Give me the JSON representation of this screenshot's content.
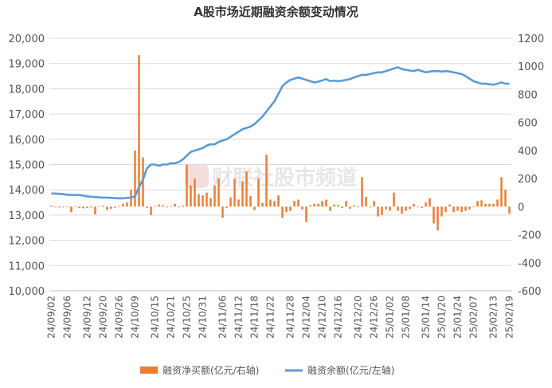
{
  "chart_data": {
    "type": "bar+line",
    "title": "A股市场近期融资余额变动情况",
    "watermark": "财联社股市频道",
    "y_left": {
      "min": 10000,
      "max": 20000,
      "step": 1000,
      "ticks": [
        "10,000",
        "11,000",
        "12,000",
        "13,000",
        "14,000",
        "15,000",
        "16,000",
        "17,000",
        "18,000",
        "19,000",
        "20,000"
      ]
    },
    "y_right": {
      "min": -600,
      "max": 1200,
      "step": 200,
      "ticks": [
        "-600",
        "-400",
        "-200",
        "0",
        "200",
        "400",
        "600",
        "800",
        "1000",
        "1200"
      ]
    },
    "x_ticks": [
      "24/09/02",
      "24/09/06",
      "24/09/12",
      "24/09/20",
      "24/09/26",
      "24/10/09",
      "24/10/15",
      "24/10/21",
      "24/10/25",
      "24/10/31",
      "24/11/06",
      "24/11/12",
      "24/11/18",
      "24/11/22",
      "24/11/28",
      "24/12/04",
      "24/12/10",
      "24/12/16",
      "24/12/20",
      "24/12/26",
      "25/01/02",
      "25/01/08",
      "25/01/14",
      "25/01/20",
      "25/01/24",
      "25/02/07",
      "25/02/13",
      "25/02/19"
    ],
    "n_points": 116,
    "bar_color": "#ED7D31",
    "line_color": "#5B9BD5",
    "series": [
      {
        "name": "融资净买额(亿元/右轴)",
        "axis": "right",
        "values": [
          8,
          -5,
          -6,
          -5,
          -4,
          -40,
          3,
          -10,
          -12,
          -10,
          -6,
          -55,
          2,
          8,
          -25,
          -15,
          -8,
          5,
          20,
          30,
          120,
          400,
          1080,
          350,
          -10,
          -60,
          0,
          15,
          10,
          -5,
          -3,
          20,
          -5,
          8,
          300,
          150,
          200,
          90,
          80,
          100,
          60,
          150,
          200,
          -80,
          -10,
          65,
          200,
          50,
          180,
          250,
          75,
          -25,
          200,
          25,
          370,
          50,
          40,
          80,
          -80,
          -40,
          -30,
          40,
          50,
          -20,
          -110,
          10,
          20,
          20,
          40,
          50,
          -30,
          15,
          12,
          -10,
          40,
          -15,
          10,
          -5,
          210,
          70,
          -6,
          40,
          -70,
          -60,
          -20,
          -30,
          100,
          -30,
          -50,
          -30,
          -18,
          20,
          -5,
          -10,
          30,
          60,
          -120,
          -170,
          -70,
          -40,
          15,
          -40,
          -30,
          -40,
          -30,
          -20,
          -5,
          40,
          45,
          20,
          20,
          20,
          50,
          210,
          120,
          -50
        ]
      },
      {
        "name": "融资余额(亿元/左轴)",
        "axis": "left",
        "values": [
          13850,
          13850,
          13840,
          13830,
          13800,
          13800,
          13790,
          13790,
          13770,
          13740,
          13720,
          13710,
          13700,
          13690,
          13690,
          13680,
          13670,
          13660,
          13660,
          13680,
          13690,
          13740,
          14100,
          14400,
          14850,
          15000,
          15000,
          14950,
          15000,
          15000,
          15050,
          15050,
          15100,
          15200,
          15350,
          15500,
          15550,
          15600,
          15650,
          15750,
          15800,
          15800,
          15900,
          15950,
          16000,
          16100,
          16200,
          16300,
          16400,
          16450,
          16500,
          16600,
          16750,
          16900,
          17100,
          17300,
          17500,
          17800,
          18100,
          18250,
          18350,
          18400,
          18450,
          18400,
          18350,
          18300,
          18250,
          18280,
          18330,
          18380,
          18300,
          18320,
          18300,
          18320,
          18350,
          18380,
          18450,
          18500,
          18550,
          18550,
          18580,
          18620,
          18650,
          18650,
          18700,
          18750,
          18800,
          18850,
          18780,
          18750,
          18720,
          18700,
          18750,
          18700,
          18650,
          18680,
          18700,
          18700,
          18680,
          18700,
          18680,
          18650,
          18620,
          18580,
          18500,
          18400,
          18300,
          18250,
          18200,
          18200,
          18180,
          18160,
          18200,
          18250,
          18200,
          18200
        ]
      }
    ],
    "legend_position": "bottom"
  }
}
